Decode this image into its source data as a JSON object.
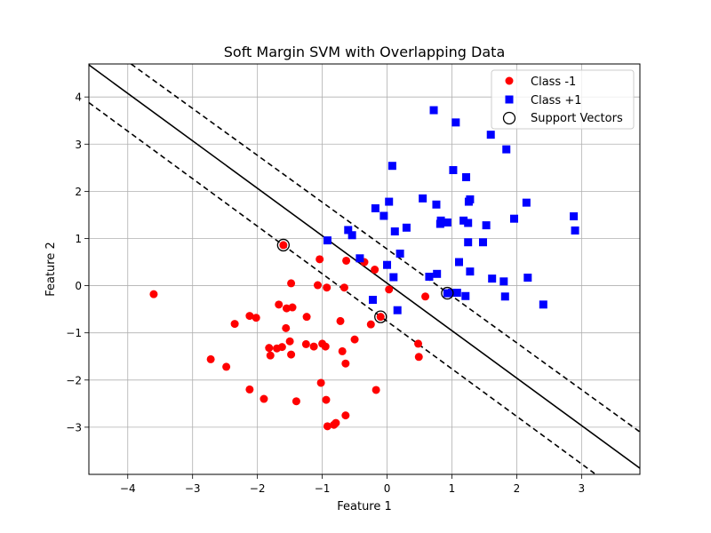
{
  "chart_data": {
    "type": "scatter",
    "title": "Soft Margin SVM with Overlapping Data",
    "xlabel": "Feature 1",
    "ylabel": "Feature 2",
    "xlim": [
      -4.6,
      3.9
    ],
    "ylim": [
      -4.0,
      4.7
    ],
    "xticks": [
      -4,
      -3,
      -2,
      -1,
      0,
      1,
      2,
      3
    ],
    "yticks": [
      -3,
      -2,
      -1,
      0,
      1,
      2,
      3,
      4
    ],
    "grid": true,
    "legend_position": "top-right",
    "series": [
      {
        "name": "Class -1",
        "marker": "circle",
        "color": "#ff0000",
        "points": [
          [
            -3.6,
            -0.18
          ],
          [
            -2.72,
            -1.56
          ],
          [
            -2.48,
            -1.72
          ],
          [
            -2.35,
            -0.81
          ],
          [
            -2.12,
            -0.64
          ],
          [
            -2.12,
            -2.2
          ],
          [
            -2.02,
            -0.68
          ],
          [
            -1.9,
            -2.4
          ],
          [
            -1.82,
            -1.32
          ],
          [
            -1.8,
            -1.48
          ],
          [
            -1.7,
            -1.33
          ],
          [
            -1.67,
            -0.4
          ],
          [
            -1.62,
            -1.3
          ],
          [
            -1.56,
            -0.9
          ],
          [
            -1.55,
            -0.48
          ],
          [
            -1.5,
            -1.18
          ],
          [
            -1.48,
            0.05
          ],
          [
            -1.48,
            -1.46
          ],
          [
            -1.46,
            -0.46
          ],
          [
            -1.4,
            -2.45
          ],
          [
            -1.25,
            -1.24
          ],
          [
            -1.24,
            -0.66
          ],
          [
            -1.13,
            -1.29
          ],
          [
            -1.07,
            0.01
          ],
          [
            -1.04,
            0.56
          ],
          [
            -1.02,
            -2.06
          ],
          [
            -1.0,
            -1.23
          ],
          [
            -0.95,
            -1.29
          ],
          [
            -0.94,
            -2.42
          ],
          [
            -0.93,
            -0.04
          ],
          [
            -0.92,
            -2.98
          ],
          [
            -0.82,
            -2.95
          ],
          [
            -0.79,
            -2.91
          ],
          [
            -0.72,
            -0.75
          ],
          [
            -0.69,
            -1.39
          ],
          [
            -0.66,
            -0.04
          ],
          [
            -0.64,
            -1.65
          ],
          [
            -0.63,
            0.53
          ],
          [
            -0.64,
            -2.75
          ],
          [
            -0.5,
            -1.14
          ],
          [
            -0.35,
            0.5
          ],
          [
            -0.25,
            -0.82
          ],
          [
            -0.19,
            0.34
          ],
          [
            -0.17,
            -2.21
          ],
          [
            -0.1,
            -0.66
          ],
          [
            0.03,
            -0.08
          ],
          [
            0.48,
            -1.23
          ],
          [
            0.49,
            -1.51
          ],
          [
            0.59,
            -0.23
          ],
          [
            -1.6,
            0.86
          ]
        ]
      },
      {
        "name": "Class +1",
        "marker": "square",
        "color": "#0000ff",
        "points": [
          [
            0.72,
            3.72
          ],
          [
            1.06,
            3.46
          ],
          [
            1.6,
            3.2
          ],
          [
            1.84,
            2.89
          ],
          [
            0.08,
            2.54
          ],
          [
            1.02,
            2.45
          ],
          [
            1.22,
            2.3
          ],
          [
            1.28,
            1.83
          ],
          [
            0.55,
            1.85
          ],
          [
            0.03,
            1.78
          ],
          [
            0.76,
            1.72
          ],
          [
            1.26,
            1.78
          ],
          [
            2.15,
            1.76
          ],
          [
            -0.18,
            1.64
          ],
          [
            -0.05,
            1.48
          ],
          [
            0.83,
            1.38
          ],
          [
            0.93,
            1.34
          ],
          [
            1.18,
            1.38
          ],
          [
            1.25,
            1.33
          ],
          [
            1.53,
            1.28
          ],
          [
            1.96,
            1.42
          ],
          [
            2.88,
            1.47
          ],
          [
            0.82,
            1.31
          ],
          [
            0.3,
            1.23
          ],
          [
            0.12,
            1.15
          ],
          [
            2.9,
            1.17
          ],
          [
            -0.6,
            1.18
          ],
          [
            -0.54,
            1.07
          ],
          [
            -0.92,
            0.96
          ],
          [
            1.25,
            0.92
          ],
          [
            1.48,
            0.92
          ],
          [
            0.2,
            0.68
          ],
          [
            -0.42,
            0.58
          ],
          [
            0.0,
            0.44
          ],
          [
            1.11,
            0.5
          ],
          [
            0.1,
            0.18
          ],
          [
            1.28,
            0.3
          ],
          [
            0.65,
            0.19
          ],
          [
            0.77,
            0.25
          ],
          [
            1.62,
            0.15
          ],
          [
            1.8,
            0.09
          ],
          [
            2.17,
            0.17
          ],
          [
            -0.22,
            -0.3
          ],
          [
            1.0,
            -0.15
          ],
          [
            1.08,
            -0.15
          ],
          [
            1.21,
            -0.22
          ],
          [
            1.82,
            -0.23
          ],
          [
            2.41,
            -0.4
          ],
          [
            0.16,
            -0.52
          ],
          [
            0.93,
            -0.16
          ]
        ]
      },
      {
        "name": "Support Vectors",
        "marker": "hollow-circle",
        "color": "#000000",
        "points": [
          [
            -1.6,
            0.86
          ],
          [
            -0.1,
            -0.66
          ],
          [
            0.93,
            -0.16
          ]
        ]
      }
    ],
    "lines": [
      {
        "role": "decision-boundary",
        "style": "solid",
        "color": "#000000",
        "points": [
          [
            -4.6,
            4.68
          ],
          [
            3.9,
            -3.87
          ]
        ]
      },
      {
        "role": "margin-upper",
        "style": "dashed",
        "color": "#000000",
        "points": [
          [
            -3.95,
            4.7
          ],
          [
            3.9,
            -3.1
          ]
        ]
      },
      {
        "role": "margin-lower",
        "style": "dashed",
        "color": "#000000",
        "points": [
          [
            -4.6,
            3.88
          ],
          [
            3.2,
            -3.98
          ]
        ]
      }
    ]
  }
}
